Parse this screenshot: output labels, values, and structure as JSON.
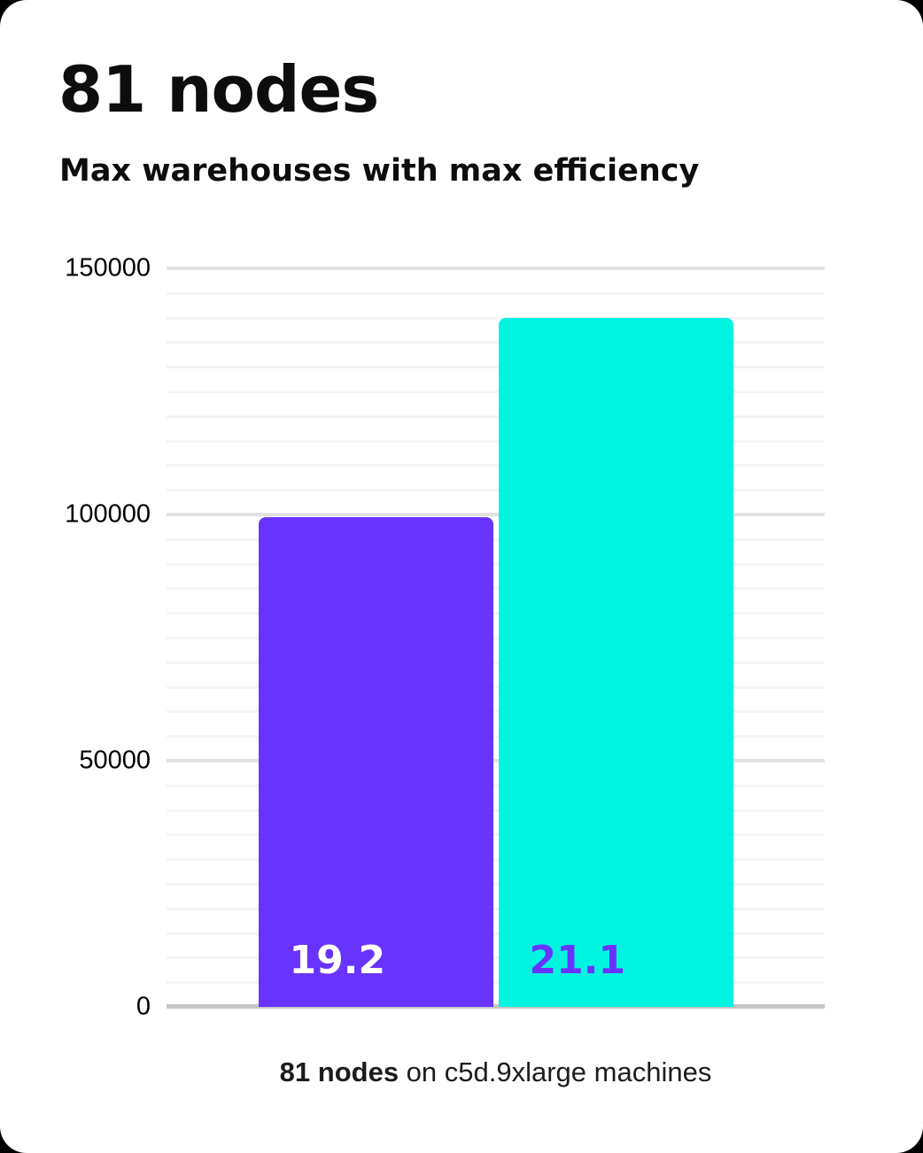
{
  "page": {
    "title": "81 nodes",
    "subtitle": "Max warehouses with max efficiency",
    "caption_bold": "81 nodes",
    "caption_rest": " on c5d.9xlarge machines"
  },
  "colors": {
    "page_bg": "#000000",
    "card_bg": "#ffffff",
    "text": "#0d0d0d",
    "bar_purple": "#6933FF",
    "bar_cyan": "#00F5E1",
    "grid_minor": "#f4f4f4",
    "grid_major": "#e2e2e2",
    "baseline": "#c5c5c5"
  },
  "chart_data": {
    "type": "bar",
    "title": "81 nodes",
    "subtitle": "Max warehouses with max efficiency",
    "categories": [
      "19.2",
      "21.1"
    ],
    "values": [
      99500,
      140000
    ],
    "bar_colors": [
      "#6933FF",
      "#00F5E1"
    ],
    "bar_label_colors": [
      "#FFFFFF",
      "#6933FF"
    ],
    "bar_value_labels": [
      "19.2",
      "21.1"
    ],
    "xlabel": "81 nodes on c5d.9xlarge machines",
    "ylabel": "",
    "ylim": [
      0,
      150000
    ],
    "yticks": [
      0,
      50000,
      100000,
      150000
    ],
    "minor_grid_step": 5000,
    "major_grid_step": 50000,
    "grid": true,
    "legend": false
  }
}
